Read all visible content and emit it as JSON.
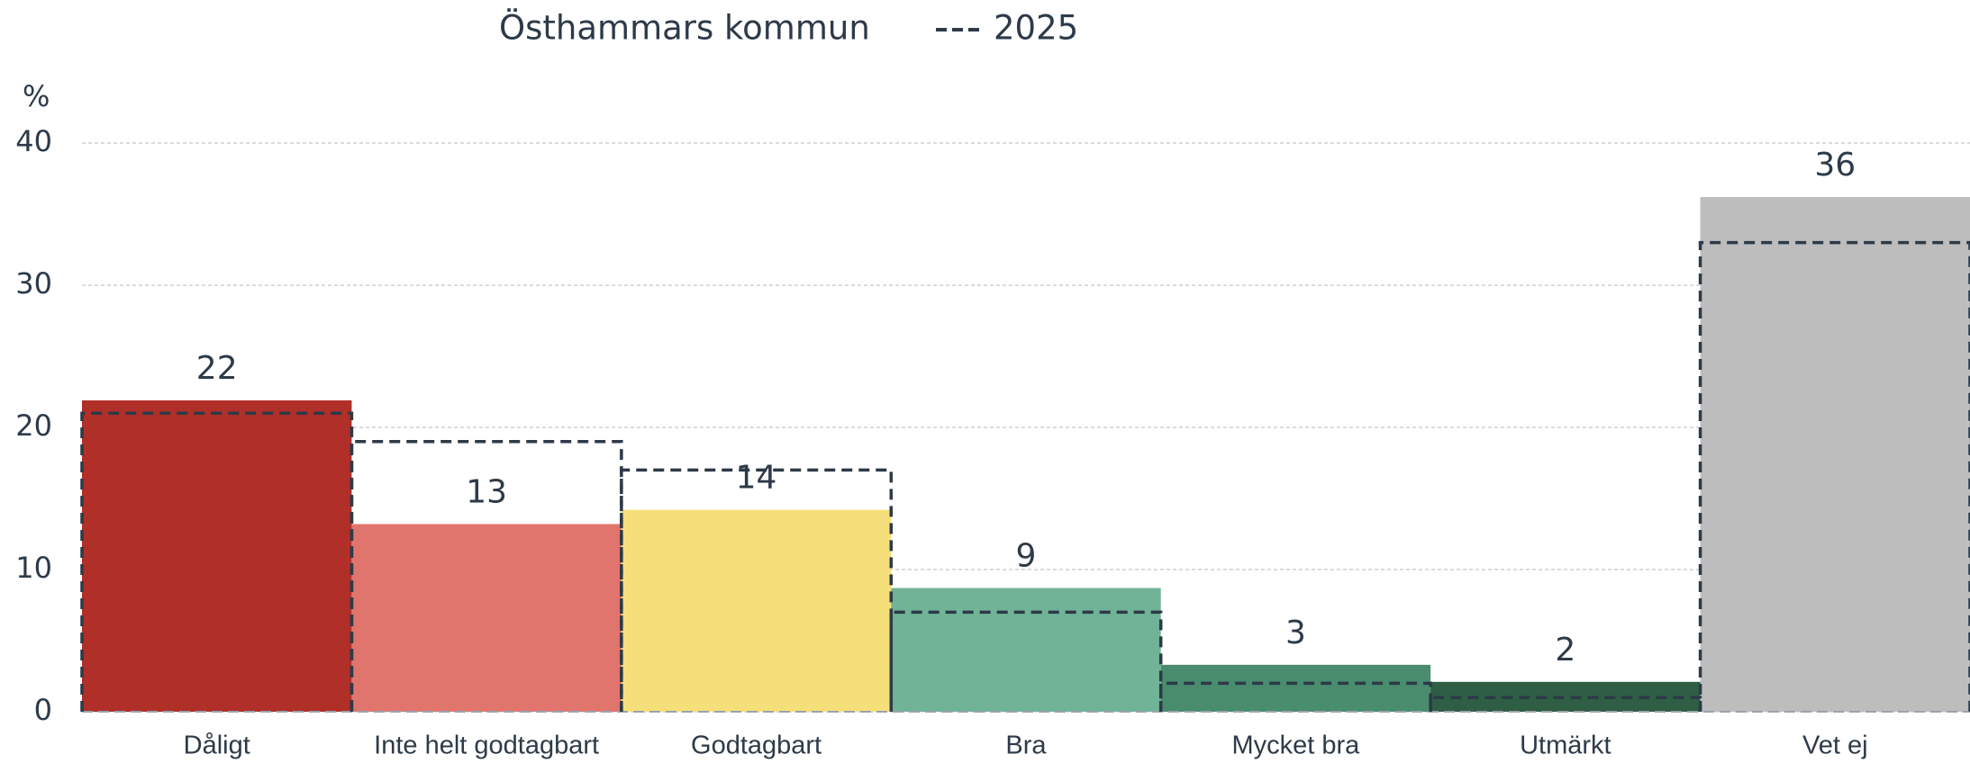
{
  "chart_data": {
    "type": "bar",
    "y_label": "%",
    "categories": [
      "Dåligt",
      "Inte helt godtagbart",
      "Godtagbart",
      "Bra",
      "Mycket bra",
      "Utmärkt",
      "Vet ej"
    ],
    "series": [
      {
        "name": "Östhammars kommun",
        "colors": [
          "#b02f28",
          "#e0756e",
          "#f5df7a",
          "#70b396",
          "#4a8c6e",
          "#2e5e44",
          "#bdbdbd"
        ],
        "values": [
          21.9,
          13.2,
          14.2,
          8.7,
          3.3,
          2.1,
          36.2
        ],
        "value_labels": [
          "22",
          "13",
          "14",
          "9",
          "3",
          "2",
          "36"
        ]
      },
      {
        "name": "2025",
        "color": "#2d3a48",
        "style": "dashed",
        "values": [
          21,
          19,
          17,
          7,
          2,
          1,
          33
        ]
      }
    ],
    "ylim": [
      0,
      40
    ],
    "yticks": [
      0,
      10,
      20,
      30,
      40
    ],
    "grid": true
  }
}
